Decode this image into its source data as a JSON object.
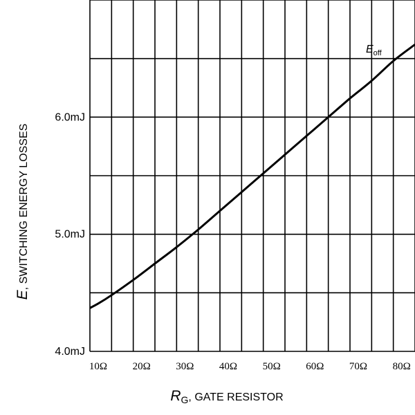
{
  "chart_data": {
    "type": "line",
    "x_ticks": [
      {
        "value": 10,
        "label": "10Ω"
      },
      {
        "value": 20,
        "label": "20Ω"
      },
      {
        "value": 30,
        "label": "30Ω"
      },
      {
        "value": 40,
        "label": "40Ω"
      },
      {
        "value": 50,
        "label": "50Ω"
      },
      {
        "value": 60,
        "label": "60Ω"
      },
      {
        "value": 70,
        "label": "70Ω"
      },
      {
        "value": 80,
        "label": "80Ω"
      }
    ],
    "y_ticks": [
      {
        "value": 4.0,
        "label": "4.0mJ"
      },
      {
        "value": 5.0,
        "label": "5.0mJ"
      },
      {
        "value": 6.0,
        "label": "6.0mJ"
      }
    ],
    "xlim": [
      10,
      85
    ],
    "ylim": [
      4.0,
      7.0
    ],
    "x_grid_step": 5,
    "y_grid_step": 0.5,
    "xlabel": {
      "symbol": "R",
      "subscript": "G",
      "text": ", GATE RESISTOR"
    },
    "ylabel": {
      "symbol": "E",
      "text": ", SWITCHING ENERGY LOSSES"
    },
    "series": [
      {
        "name": {
          "symbol": "E",
          "subscript": "off"
        },
        "x": [
          10,
          12,
          15,
          20,
          25,
          30,
          35,
          40,
          45,
          50,
          55,
          60,
          65,
          70,
          75,
          80,
          85
        ],
        "y": [
          4.37,
          4.41,
          4.48,
          4.61,
          4.75,
          4.89,
          5.04,
          5.2,
          5.36,
          5.52,
          5.68,
          5.84,
          6.0,
          6.16,
          6.31,
          6.48,
          6.62
        ]
      }
    ]
  }
}
